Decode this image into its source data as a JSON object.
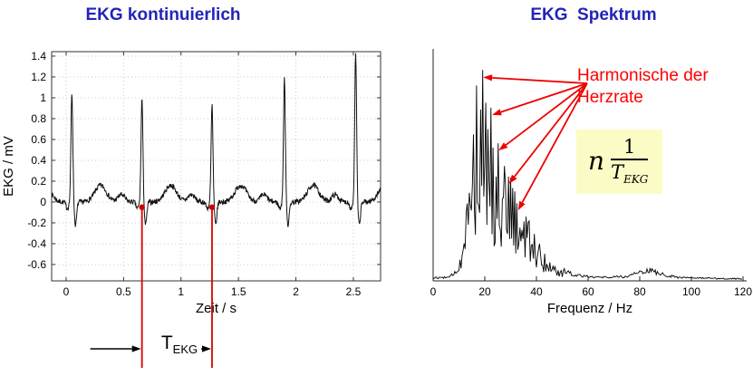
{
  "titles": {
    "left": "EKG kontinuierlich",
    "right": "EKG  Spektrum",
    "color": "#2424b8"
  },
  "annotations": {
    "harmonics_line1": "Harmonische der",
    "harmonics_line2": "Herzrate",
    "annotation_color": "#ff0000",
    "t_ekg_base": "T",
    "t_ekg_sub": "EKG",
    "formula_factor": "n",
    "formula_numerator": "1",
    "formula_denominator_base": "T",
    "formula_denominator_sub": "EKG",
    "formula_background": "#fbfbc6"
  },
  "chart_data": [
    {
      "type": "line",
      "name": "ekg_time",
      "title": "EKG kontinuierlich",
      "xlabel": "Zeit / s",
      "ylabel": "EKG / mV",
      "xlim": [
        -0.126,
        2.737
      ],
      "ylim": [
        -0.757,
        1.443
      ],
      "grid": true,
      "xticks": {
        "values": [
          0,
          0.5,
          1,
          1.5,
          2,
          2.5
        ],
        "labels": [
          "0",
          "0.5",
          "1",
          "1.5",
          "2",
          "2.5"
        ]
      },
      "yticks": {
        "values": [
          -0.6,
          -0.4,
          -0.2,
          0,
          0.2,
          0.4,
          0.6,
          0.8,
          1,
          1.2,
          1.4
        ],
        "labels": [
          "-0.6",
          "-0.4",
          "-0.2",
          "0",
          "0.2",
          "0.4",
          "0.6",
          "0.8",
          "1",
          "1.2",
          "1.4"
        ]
      },
      "r_peak_times_s": [
        0.05,
        0.66,
        1.27,
        1.9,
        2.52
      ],
      "r_peak_amplitudes_mV": [
        1.05,
        1.0,
        0.93,
        1.18,
        1.43
      ],
      "t_ekg_period_s": 0.61,
      "marked_beat_times_s": [
        0.66,
        1.27
      ],
      "beat_shape": {
        "s_dip_mV": -0.22,
        "q_dip_mV": -0.06,
        "t_wave_mV": 0.16,
        "p_wave_mV": 0.07,
        "noise_mV": 0.05
      },
      "sample_step_s": 0.0035,
      "noise_seed": 7,
      "marker_color": "#cc0000"
    },
    {
      "type": "line",
      "name": "ekg_spectrum",
      "title": "EKG Spektrum",
      "xlabel": "Frequenz / Hz",
      "xlim": [
        0,
        120
      ],
      "ylim": [
        0,
        1.1
      ],
      "xticks": {
        "values": [
          0,
          20,
          40,
          60,
          80,
          100,
          120
        ],
        "labels": [
          "0",
          "20",
          "40",
          "60",
          "80",
          "100",
          "120"
        ]
      },
      "envelope_points": [
        [
          0,
          0.018
        ],
        [
          6,
          0.02
        ],
        [
          9,
          0.05
        ],
        [
          11,
          0.22
        ],
        [
          13,
          0.45
        ],
        [
          15,
          0.75
        ],
        [
          17,
          0.92
        ],
        [
          19,
          1.0
        ],
        [
          21,
          0.85
        ],
        [
          24,
          0.68
        ],
        [
          27,
          0.55
        ],
        [
          30,
          0.48
        ],
        [
          33,
          0.4
        ],
        [
          36,
          0.3
        ],
        [
          40,
          0.22
        ],
        [
          44,
          0.12
        ],
        [
          48,
          0.07
        ],
        [
          55,
          0.035
        ],
        [
          65,
          0.02
        ],
        [
          75,
          0.025
        ],
        [
          80,
          0.05
        ],
        [
          84,
          0.06
        ],
        [
          88,
          0.04
        ],
        [
          95,
          0.02
        ],
        [
          105,
          0.015
        ],
        [
          120,
          0.012
        ]
      ],
      "harmonic_arrow_peaks": [
        [
          19,
          0.95
        ],
        [
          22.5,
          0.78
        ],
        [
          25,
          0.62
        ],
        [
          29,
          0.47
        ],
        [
          32.5,
          0.35
        ]
      ],
      "extra_peaks": [
        [
          17,
          0.88
        ]
      ],
      "sample_step_hz": 0.4,
      "noise_seed": 12,
      "arrow_color": "#ee0000"
    }
  ]
}
